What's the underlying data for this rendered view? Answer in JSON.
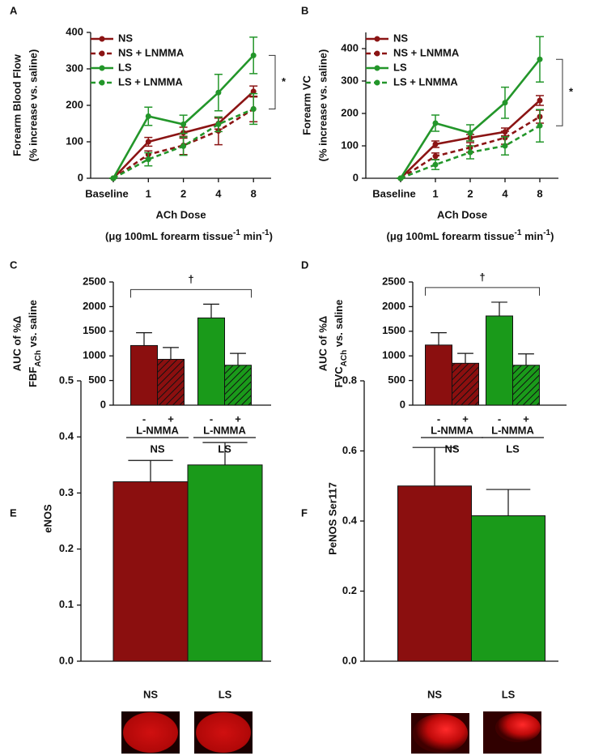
{
  "chart_data": [
    {
      "type": "line",
      "panel": "A",
      "ylabel": [
        "Forearm Blood Flow",
        "(% increase vs. saline)"
      ],
      "xlabel": "ACh Dose",
      "xlabel_unit": [
        "(μg 100mL forearm tissue",
        "-1",
        " min",
        "-1",
        ")"
      ],
      "categories": [
        "Baseline",
        "1",
        "2",
        "4",
        "8"
      ],
      "ylim": [
        0,
        400
      ],
      "yticks": [
        0,
        100,
        200,
        300,
        400
      ],
      "annotation": "*",
      "series": [
        {
          "name": "NS",
          "color": "#8b1414",
          "dash": false,
          "values": [
            0,
            100,
            125,
            150,
            238
          ],
          "errors": [
            0,
            12,
            15,
            15,
            15
          ]
        },
        {
          "name": "NS + LNMMA",
          "color": "#8b1414",
          "dash": true,
          "values": [
            0,
            65,
            90,
            130,
            190
          ],
          "errors": [
            0,
            10,
            25,
            38,
            35
          ]
        },
        {
          "name": "LS",
          "color": "#23962a",
          "dash": false,
          "values": [
            0,
            170,
            148,
            235,
            337
          ],
          "errors": [
            0,
            25,
            25,
            50,
            50
          ]
        },
        {
          "name": "LS + LNMMA",
          "color": "#23962a",
          "dash": true,
          "values": [
            0,
            52,
            88,
            148,
            190
          ],
          "errors": [
            0,
            18,
            25,
            20,
            42
          ]
        }
      ]
    },
    {
      "type": "line",
      "panel": "B",
      "ylabel": [
        "Forearm VC",
        "(% increase vs. saline)"
      ],
      "xlabel": "ACh Dose",
      "xlabel_unit": [
        "(μg 100mL forearm tissue",
        "-1",
        " min",
        "-1",
        ")"
      ],
      "categories": [
        "Baseline",
        "1",
        "2",
        "4",
        "8"
      ],
      "ylim": [
        0,
        450
      ],
      "yticks": [
        0,
        100,
        200,
        300,
        400
      ],
      "annotation": "*",
      "series": [
        {
          "name": "NS",
          "color": "#8b1414",
          "dash": false,
          "values": [
            0,
            105,
            125,
            143,
            240
          ],
          "errors": [
            0,
            10,
            10,
            12,
            15
          ]
        },
        {
          "name": "NS + LNMMA",
          "color": "#8b1414",
          "dash": true,
          "values": [
            0,
            68,
            95,
            125,
            190
          ],
          "errors": [
            0,
            10,
            15,
            20,
            20
          ]
        },
        {
          "name": "LS",
          "color": "#23962a",
          "dash": false,
          "values": [
            0,
            170,
            140,
            233,
            367
          ],
          "errors": [
            0,
            25,
            25,
            48,
            70
          ]
        },
        {
          "name": "LS + LNMMA",
          "color": "#23962a",
          "dash": true,
          "values": [
            0,
            42,
            80,
            100,
            162
          ],
          "errors": [
            0,
            15,
            20,
            28,
            50
          ]
        }
      ]
    },
    {
      "type": "bar",
      "panel": "C",
      "ylabel": [
        "AUC of %Δ",
        [
          "FBF",
          "ACh",
          " vs. saline"
        ]
      ],
      "categories": [
        "-",
        "+",
        "-",
        "+"
      ],
      "groups": [
        "NS",
        "LS"
      ],
      "group_sublabel": "L-NMMA",
      "values": [
        1210,
        930,
        1770,
        810
      ],
      "errors": [
        260,
        240,
        280,
        240
      ],
      "colors": [
        "#8b0f0f",
        "#8b0f0f",
        "#1a9a1a",
        "#1a9a1a"
      ],
      "hatched": [
        false,
        true,
        false,
        true
      ],
      "ylim": [
        0,
        2500
      ],
      "yticks": [
        0,
        500,
        1000,
        1500,
        2000,
        2500
      ],
      "annotation": "†"
    },
    {
      "type": "bar",
      "panel": "D",
      "ylabel": [
        "AUC of %Δ",
        [
          "FVC",
          "ACh",
          " vs. saline"
        ]
      ],
      "categories": [
        "-",
        "+",
        "-",
        "+"
      ],
      "groups": [
        "NS",
        "LS"
      ],
      "group_sublabel": "L-NMMA",
      "values": [
        1220,
        850,
        1810,
        810
      ],
      "errors": [
        250,
        200,
        280,
        230
      ],
      "colors": [
        "#8b0f0f",
        "#8b0f0f",
        "#1a9a1a",
        "#1a9a1a"
      ],
      "hatched": [
        false,
        true,
        false,
        true
      ],
      "ylim": [
        0,
        2500
      ],
      "yticks": [
        0,
        500,
        1000,
        1500,
        2000,
        2500
      ],
      "annotation": "†"
    },
    {
      "type": "bar",
      "panel": "E",
      "ylabel": [
        "eNOS"
      ],
      "categories": [
        "NS",
        "LS"
      ],
      "values": [
        0.32,
        0.35
      ],
      "errors": [
        0.038,
        0.04
      ],
      "colors": [
        "#8b0f0f",
        "#1a9a1a"
      ],
      "hatched": [
        false,
        false
      ],
      "ylim": [
        0,
        0.5
      ],
      "yticks": [
        {
          "value": 0,
          "label": "0.0"
        },
        0.1,
        0.2,
        0.3,
        0.4,
        0.5
      ]
    },
    {
      "type": "bar",
      "panel": "F",
      "ylabel": [
        "PeNOS Ser117"
      ],
      "categories": [
        "NS",
        "LS"
      ],
      "values": [
        0.5,
        0.415
      ],
      "errors": [
        0.11,
        0.075
      ],
      "colors": [
        "#8b0f0f",
        "#1a9a1a"
      ],
      "hatched": [
        false,
        false
      ],
      "ylim": [
        0,
        0.8
      ],
      "yticks": [
        {
          "value": 0,
          "label": "0.0"
        },
        0.2,
        0.4,
        0.6,
        0.8
      ]
    }
  ]
}
